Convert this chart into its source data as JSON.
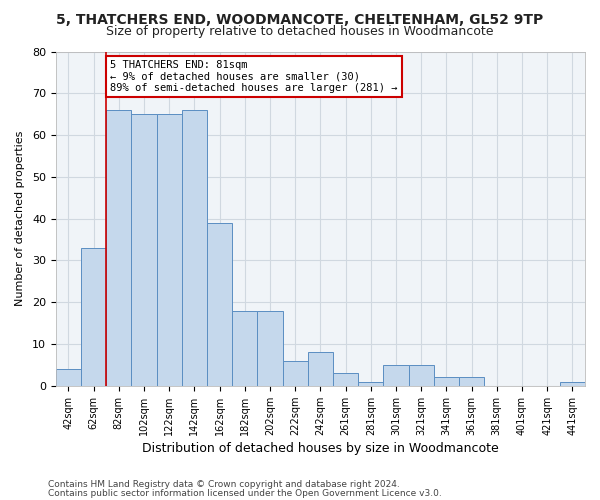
{
  "title1": "5, THATCHERS END, WOODMANCOTE, CHELTENHAM, GL52 9TP",
  "title2": "Size of property relative to detached houses in Woodmancote",
  "xlabel": "Distribution of detached houses by size in Woodmancote",
  "ylabel": "Number of detached properties",
  "footnote1": "Contains HM Land Registry data © Crown copyright and database right 2024.",
  "footnote2": "Contains public sector information licensed under the Open Government Licence v3.0.",
  "bin_labels": [
    "42sqm",
    "62sqm",
    "82sqm",
    "102sqm",
    "122sqm",
    "142sqm",
    "162sqm",
    "182sqm",
    "202sqm",
    "222sqm",
    "242sqm",
    "261sqm",
    "281sqm",
    "301sqm",
    "321sqm",
    "341sqm",
    "361sqm",
    "381sqm",
    "401sqm",
    "421sqm",
    "441sqm"
  ],
  "bar_values": [
    4,
    33,
    66,
    65,
    65,
    66,
    39,
    18,
    18,
    6,
    8,
    3,
    1,
    5,
    5,
    2,
    2,
    0,
    0,
    0,
    1
  ],
  "bar_color": "#c5d8ec",
  "bar_edge_color": "#5b8ec2",
  "property_line_index": 2,
  "property_line_color": "#cc0000",
  "annotation_line1": "5 THATCHERS END: 81sqm",
  "annotation_line2": "← 9% of detached houses are smaller (30)",
  "annotation_line3": "89% of semi-detached houses are larger (281) →",
  "annotation_box_color": "#cc0000",
  "ylim": [
    0,
    80
  ],
  "yticks": [
    0,
    10,
    20,
    30,
    40,
    50,
    60,
    70,
    80
  ],
  "fig_bg_color": "#ffffff",
  "plot_bg_color": "#f0f4f8",
  "grid_color": "#d0d8e0",
  "title1_fontsize": 10,
  "title2_fontsize": 9,
  "xlabel_fontsize": 9,
  "ylabel_fontsize": 8,
  "tick_fontsize": 7,
  "footnote_fontsize": 6.5
}
